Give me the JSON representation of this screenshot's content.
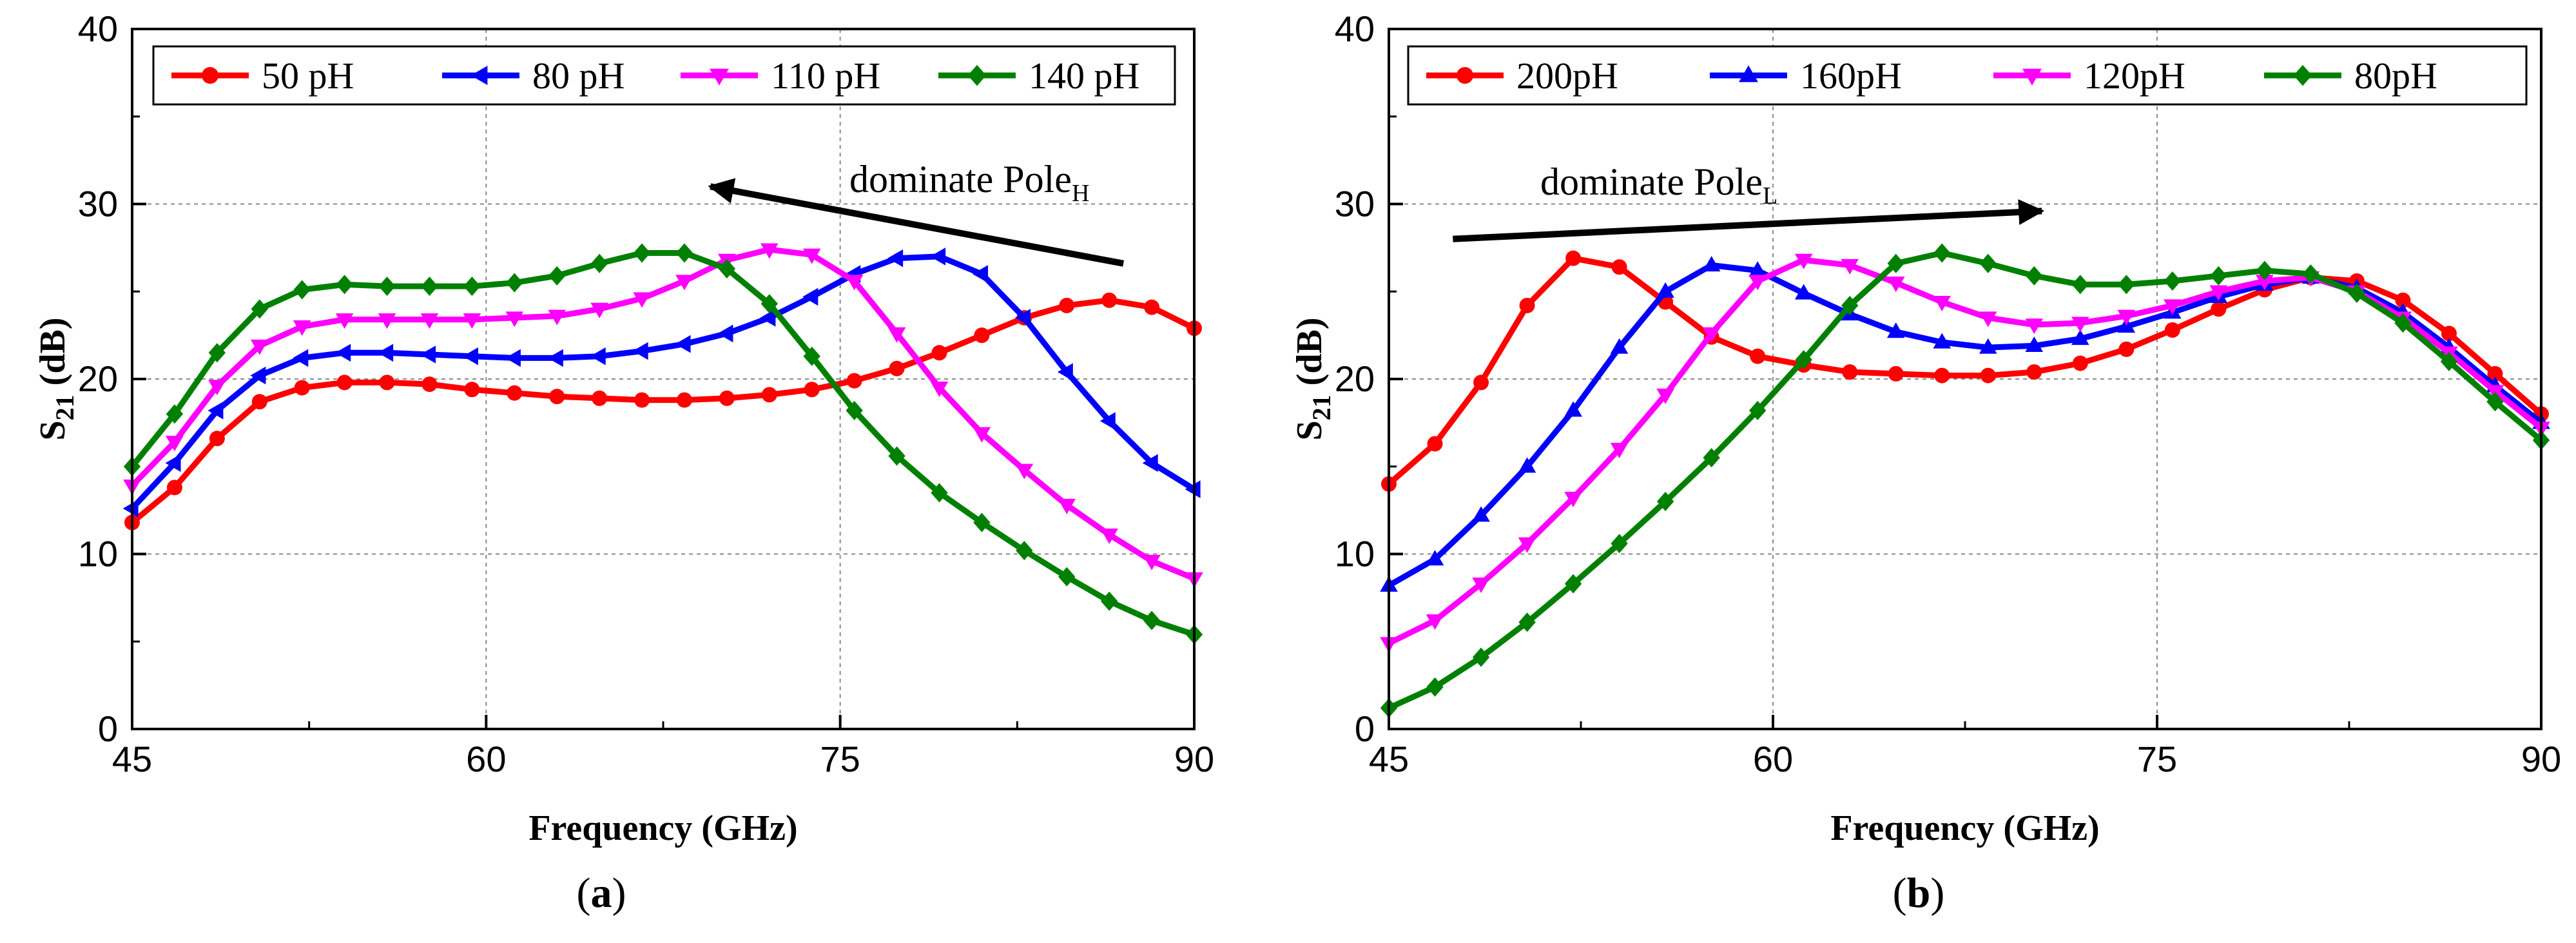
{
  "figure": {
    "panels": [
      {
        "id": "a",
        "caption": {
          "open": "(",
          "letter": "a",
          "close": ")"
        },
        "annotation": {
          "text": "dominate Pole",
          "sub": "H"
        }
      },
      {
        "id": "b",
        "caption": {
          "open": "(",
          "letter": "b",
          "close": ")"
        },
        "annotation": {
          "text": "dominate Pole",
          "sub": "L"
        }
      }
    ]
  },
  "chart_data": [
    {
      "type": "line",
      "title": "",
      "xlabel": "Frequency (GHz)",
      "ylabel": {
        "main": "S",
        "sub": "21",
        "suffix": " (dB)"
      },
      "xlim": [
        45,
        90
      ],
      "ylim": [
        0,
        40
      ],
      "xticks": [
        45,
        60,
        75,
        90
      ],
      "yticks": [
        0,
        10,
        20,
        30,
        40
      ],
      "grid": true,
      "legend_position": "top",
      "annotation_arrow": {
        "from": [
          87,
          26.6
        ],
        "to": [
          69.5,
          31.0
        ]
      },
      "series": [
        {
          "name": "50 pH",
          "color": "#ff0000",
          "marker": "circle",
          "x": [
            45,
            46.8,
            48.6,
            50.4,
            52.2,
            54,
            55.8,
            57.6,
            59.4,
            61.2,
            63,
            64.8,
            66.6,
            68.4,
            70.2,
            72,
            73.8,
            75.6,
            77.4,
            79.2,
            81,
            82.8,
            84.6,
            86.4,
            88.2,
            90
          ],
          "y": [
            11.8,
            13.8,
            16.6,
            18.7,
            19.5,
            19.8,
            19.8,
            19.7,
            19.4,
            19.2,
            19.0,
            18.9,
            18.8,
            18.8,
            18.9,
            19.1,
            19.4,
            19.9,
            20.6,
            21.5,
            22.5,
            23.5,
            24.2,
            24.5,
            24.1,
            22.9
          ]
        },
        {
          "name": "80 pH",
          "color": "#0000ff",
          "marker": "triangle-left",
          "x": [
            45,
            46.8,
            48.6,
            50.4,
            52.2,
            54,
            55.8,
            57.6,
            59.4,
            61.2,
            63,
            64.8,
            66.6,
            68.4,
            70.2,
            72,
            73.8,
            75.6,
            77.4,
            79.2,
            81,
            82.8,
            84.6,
            86.4,
            88.2,
            90
          ],
          "y": [
            12.6,
            15.2,
            18.2,
            20.2,
            21.2,
            21.5,
            21.5,
            21.4,
            21.3,
            21.2,
            21.2,
            21.3,
            21.6,
            22.0,
            22.6,
            23.5,
            24.7,
            26.0,
            26.9,
            27.0,
            26.0,
            23.5,
            20.4,
            17.6,
            15.2,
            13.7
          ]
        },
        {
          "name": "110 pH",
          "color": "#ff00ff",
          "marker": "triangle-down",
          "x": [
            45,
            46.8,
            48.6,
            50.4,
            52.2,
            54,
            55.8,
            57.6,
            59.4,
            61.2,
            63,
            64.8,
            66.6,
            68.4,
            70.2,
            72,
            73.8,
            75.6,
            77.4,
            79.2,
            81,
            82.8,
            84.6,
            86.4,
            88.2,
            90
          ],
          "y": [
            13.9,
            16.4,
            19.6,
            21.9,
            23.0,
            23.4,
            23.4,
            23.4,
            23.4,
            23.5,
            23.6,
            24.0,
            24.6,
            25.6,
            26.8,
            27.4,
            27.1,
            25.6,
            22.6,
            19.5,
            16.9,
            14.8,
            12.8,
            11.1,
            9.6,
            8.6
          ]
        },
        {
          "name": "140 pH",
          "color": "#008000",
          "marker": "diamond",
          "x": [
            45,
            46.8,
            48.6,
            50.4,
            52.2,
            54,
            55.8,
            57.6,
            59.4,
            61.2,
            63,
            64.8,
            66.6,
            68.4,
            70.2,
            72,
            73.8,
            75.6,
            77.4,
            79.2,
            81,
            82.8,
            84.6,
            86.4,
            88.2,
            90
          ],
          "y": [
            15.0,
            18.0,
            21.5,
            24.0,
            25.1,
            25.4,
            25.3,
            25.3,
            25.3,
            25.5,
            25.9,
            26.6,
            27.2,
            27.2,
            26.3,
            24.3,
            21.3,
            18.2,
            15.6,
            13.5,
            11.8,
            10.2,
            8.7,
            7.3,
            6.2,
            5.4
          ]
        }
      ]
    },
    {
      "type": "line",
      "title": "",
      "xlabel": "Frequency (GHz)",
      "ylabel": {
        "main": "S",
        "sub": "21",
        "suffix": " (dB)"
      },
      "xlim": [
        45,
        90
      ],
      "ylim": [
        0,
        40
      ],
      "xticks": [
        45,
        60,
        75,
        90
      ],
      "yticks": [
        0,
        10,
        20,
        30,
        40
      ],
      "grid": true,
      "legend_position": "top",
      "annotation_arrow": {
        "from": [
          47.5,
          28.0
        ],
        "to": [
          70.5,
          29.6
        ]
      },
      "series": [
        {
          "name": "200pH",
          "color": "#ff0000",
          "marker": "circle",
          "x": [
            45,
            46.8,
            48.6,
            50.4,
            52.2,
            54,
            55.8,
            57.6,
            59.4,
            61.2,
            63,
            64.8,
            66.6,
            68.4,
            70.2,
            72,
            73.8,
            75.6,
            77.4,
            79.2,
            81,
            82.8,
            84.6,
            86.4,
            88.2,
            90
          ],
          "y": [
            14.0,
            16.3,
            19.8,
            24.2,
            26.9,
            26.4,
            24.4,
            22.4,
            21.3,
            20.8,
            20.4,
            20.3,
            20.2,
            20.2,
            20.4,
            20.9,
            21.7,
            22.8,
            24.0,
            25.1,
            25.8,
            25.6,
            24.5,
            22.6,
            20.3,
            18.0
          ]
        },
        {
          "name": "160pH",
          "color": "#0000ff",
          "marker": "triangle-up",
          "x": [
            45,
            46.8,
            48.6,
            50.4,
            52.2,
            54,
            55.8,
            57.6,
            59.4,
            61.2,
            63,
            64.8,
            66.6,
            68.4,
            70.2,
            72,
            73.8,
            75.6,
            77.4,
            79.2,
            81,
            82.8,
            84.6,
            86.4,
            88.2,
            90
          ],
          "y": [
            8.2,
            9.7,
            12.2,
            15.0,
            18.2,
            21.8,
            25.0,
            26.5,
            26.2,
            24.9,
            23.7,
            22.7,
            22.1,
            21.8,
            21.9,
            22.3,
            23.0,
            23.8,
            24.7,
            25.4,
            25.8,
            25.2,
            23.8,
            21.8,
            19.6,
            17.5
          ]
        },
        {
          "name": "120pH",
          "color": "#ff00ff",
          "marker": "triangle-down",
          "x": [
            45,
            46.8,
            48.6,
            50.4,
            52.2,
            54,
            55.8,
            57.6,
            59.4,
            61.2,
            63,
            64.8,
            66.6,
            68.4,
            70.2,
            72,
            73.8,
            75.6,
            77.4,
            79.2,
            81,
            82.8,
            84.6,
            86.4,
            88.2,
            90
          ],
          "y": [
            4.9,
            6.2,
            8.3,
            10.6,
            13.2,
            16.0,
            19.1,
            22.6,
            25.6,
            26.8,
            26.5,
            25.5,
            24.4,
            23.5,
            23.1,
            23.2,
            23.6,
            24.2,
            25.0,
            25.6,
            25.8,
            25.0,
            23.5,
            21.5,
            19.3,
            17.2
          ]
        },
        {
          "name": "80pH",
          "color": "#008000",
          "marker": "diamond",
          "x": [
            45,
            46.8,
            48.6,
            50.4,
            52.2,
            54,
            55.8,
            57.6,
            59.4,
            61.2,
            63,
            64.8,
            66.6,
            68.4,
            70.2,
            72,
            73.8,
            75.6,
            77.4,
            79.2,
            81,
            82.8,
            84.6,
            86.4,
            88.2,
            90
          ],
          "y": [
            1.2,
            2.4,
            4.1,
            6.1,
            8.3,
            10.6,
            13.0,
            15.5,
            18.2,
            21.1,
            24.2,
            26.6,
            27.2,
            26.6,
            25.9,
            25.4,
            25.4,
            25.6,
            25.9,
            26.2,
            26.0,
            24.9,
            23.2,
            21.0,
            18.7,
            16.5
          ]
        }
      ]
    }
  ]
}
